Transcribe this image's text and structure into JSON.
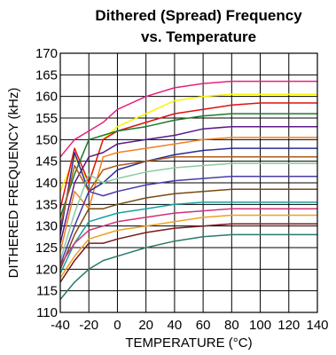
{
  "chart_data": {
    "type": "line",
    "title_line1": "Dithered (Spread) Frequency",
    "title_line2": "vs. Temperature",
    "xlabel": "TEMPERATURE (°C)",
    "ylabel": "DITHERED FREQUENCY (kHz)",
    "xlim": [
      -40,
      140
    ],
    "ylim": [
      110,
      170
    ],
    "x_ticks": [
      "-40",
      "-20",
      "0",
      "20",
      "40",
      "60",
      "80",
      "100",
      "120",
      "140"
    ],
    "y_ticks": [
      "170",
      "165",
      "160",
      "155",
      "150",
      "145",
      "140",
      "135",
      "130",
      "125",
      "120",
      "115",
      "110"
    ],
    "grid": true,
    "series": [
      {
        "color": "#e8207c",
        "x": [
          -40,
          -30,
          -20,
          -10,
          0,
          20,
          40,
          60,
          80,
          100,
          120,
          140
        ],
        "y": [
          146,
          150,
          152,
          154,
          157,
          160,
          162,
          163,
          163.5,
          163.5,
          163.5,
          163.5
        ]
      },
      {
        "color": "#f5f500",
        "x": [
          -40,
          -30,
          -20,
          -10,
          0,
          20,
          40,
          60,
          80,
          100,
          120,
          140
        ],
        "y": [
          138,
          146,
          140,
          150,
          153,
          156,
          159,
          160,
          160.5,
          160.5,
          160.5,
          160.5
        ]
      },
      {
        "color": "#e01010",
        "x": [
          -40,
          -30,
          -20,
          -10,
          0,
          20,
          40,
          60,
          80,
          100,
          120,
          140
        ],
        "y": [
          134,
          148,
          140,
          150,
          152,
          154,
          156,
          157,
          158,
          158.5,
          158.5,
          158.5
        ]
      },
      {
        "color": "#1a7a2a",
        "x": [
          -40,
          -30,
          -20,
          -10,
          0,
          20,
          40,
          60,
          80,
          100,
          120,
          140
        ],
        "y": [
          132,
          142,
          150,
          151,
          152,
          153,
          154.5,
          155.5,
          156,
          156,
          156,
          156
        ]
      },
      {
        "color": "#5a1a8a",
        "x": [
          -40,
          -30,
          -20,
          -10,
          0,
          20,
          40,
          60,
          80,
          100,
          120,
          140
        ],
        "y": [
          126,
          140,
          146,
          147,
          149,
          150,
          151,
          152.5,
          153,
          153,
          153,
          153
        ]
      },
      {
        "color": "#f08020",
        "x": [
          -40,
          -30,
          -20,
          -10,
          0,
          20,
          40,
          60,
          80,
          100,
          120,
          140
        ],
        "y": [
          124,
          138,
          134,
          146,
          147,
          148,
          149,
          150,
          150.5,
          150.5,
          150.5,
          150.5
        ]
      },
      {
        "color": "#2a2a9a",
        "x": [
          -40,
          -30,
          -20,
          -10,
          0,
          20,
          40,
          60,
          80,
          100,
          120,
          140
        ],
        "y": [
          128,
          147,
          138,
          140,
          143,
          145,
          146.5,
          147.5,
          148,
          148,
          148,
          148
        ]
      },
      {
        "color": "#b05a18",
        "x": [
          -40,
          -30,
          -20,
          -10,
          0,
          20,
          40,
          60,
          80,
          100,
          120,
          140
        ],
        "y": [
          130,
          144,
          138,
          143,
          144,
          145,
          146,
          146,
          146,
          146,
          146,
          146
        ]
      },
      {
        "color": "#8acba0",
        "x": [
          -40,
          -30,
          -20,
          -10,
          0,
          20,
          40,
          60,
          80,
          100,
          120,
          140
        ],
        "y": [
          122,
          133,
          142,
          140,
          141,
          142.5,
          143.5,
          144,
          144.5,
          144.5,
          144.5,
          144.5
        ]
      },
      {
        "color": "#4a3aaa",
        "x": [
          -40,
          -30,
          -20,
          -10,
          0,
          20,
          40,
          60,
          80,
          100,
          120,
          140
        ],
        "y": [
          121,
          130,
          138,
          137,
          138,
          139.5,
          140.5,
          141,
          141.5,
          141.5,
          141.5,
          141.5
        ]
      },
      {
        "color": "#7a4a10",
        "x": [
          -40,
          -30,
          -20,
          -10,
          0,
          20,
          40,
          60,
          80,
          100,
          120,
          140
        ],
        "y": [
          120,
          128,
          134,
          134,
          135,
          136.5,
          137.5,
          138,
          138.5,
          138.5,
          138.5,
          138.5
        ]
      },
      {
        "color": "#1aa0a0",
        "x": [
          -40,
          -30,
          -20,
          -10,
          0,
          20,
          40,
          60,
          80,
          100,
          120,
          140
        ],
        "y": [
          119,
          126,
          131,
          132,
          133,
          134,
          135,
          135.5,
          135.5,
          135.5,
          135.5,
          135.5
        ]
      },
      {
        "color": "#d0307a",
        "x": [
          -40,
          -30,
          -20,
          -10,
          0,
          20,
          40,
          60,
          80,
          100,
          120,
          140
        ],
        "y": [
          121,
          126,
          129,
          130,
          131,
          132,
          133,
          133.5,
          134,
          134,
          134,
          134
        ]
      },
      {
        "color": "#f0a020",
        "x": [
          -40,
          -30,
          -20,
          -10,
          0,
          20,
          40,
          60,
          80,
          100,
          120,
          140
        ],
        "y": [
          118,
          123,
          127,
          128,
          129,
          130,
          131,
          132,
          132.5,
          132.5,
          132.5,
          132.5
        ]
      },
      {
        "color": "#7a1a1a",
        "x": [
          -40,
          -30,
          -20,
          -10,
          0,
          20,
          40,
          60,
          80,
          100,
          120,
          140
        ],
        "y": [
          117,
          122,
          126,
          126,
          127,
          128.5,
          129.5,
          130,
          130.5,
          130.5,
          130.5,
          130.5
        ]
      },
      {
        "color": "#2a7a6a",
        "x": [
          -40,
          -30,
          -20,
          -10,
          0,
          20,
          40,
          60,
          80,
          100,
          120,
          140
        ],
        "y": [
          113,
          117,
          120,
          122,
          123,
          125,
          126.5,
          127.5,
          128,
          128,
          128,
          128
        ]
      }
    ]
  }
}
